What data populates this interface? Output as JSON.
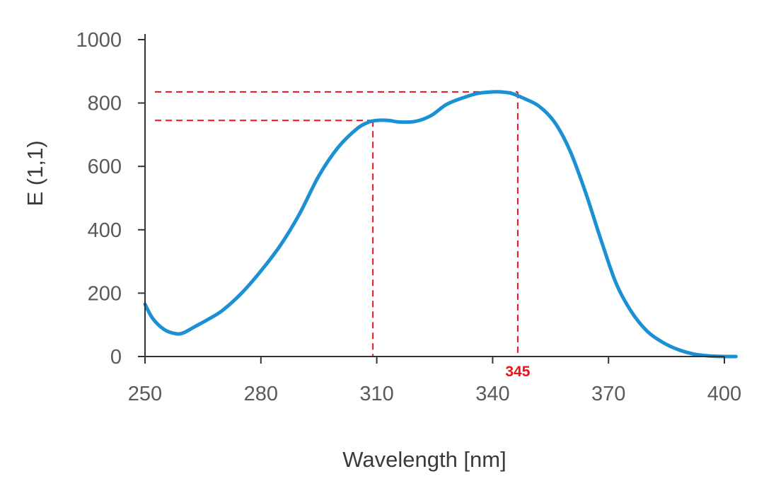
{
  "chart_data": {
    "type": "line",
    "xlabel": "Wavelength [nm]",
    "ylabel": "E (1,1)",
    "xlim": [
      250,
      400
    ],
    "ylim": [
      0,
      1000
    ],
    "x_ticks": [
      250,
      280,
      310,
      340,
      370,
      400
    ],
    "y_ticks": [
      0,
      200,
      400,
      600,
      800,
      1000
    ],
    "x_tick_labels": [
      "250",
      "280",
      "310",
      "340",
      "370",
      "400"
    ],
    "y_tick_labels": [
      "0",
      "200",
      "400",
      "600",
      "800",
      "1000"
    ],
    "grid": false,
    "series": [
      {
        "color": "#1b90d3",
        "x": [
          250,
          252,
          255,
          258,
          260,
          263,
          266,
          270,
          275,
          280,
          285,
          290,
          295,
          300,
          305,
          308,
          310,
          313,
          316,
          320,
          324,
          328,
          332,
          336,
          340,
          342,
          345,
          348,
          352,
          356,
          360,
          364,
          368,
          372,
          376,
          380,
          384,
          388,
          392,
          396,
          400,
          403
        ],
        "y": [
          165,
          120,
          85,
          72,
          75,
          95,
          115,
          145,
          200,
          270,
          350,
          450,
          570,
          660,
          720,
          740,
          745,
          745,
          740,
          742,
          760,
          795,
          815,
          830,
          835,
          835,
          830,
          815,
          790,
          740,
          650,
          520,
          370,
          230,
          140,
          80,
          45,
          22,
          8,
          2,
          0,
          0
        ]
      }
    ],
    "annotations": [
      {
        "type": "crosshair",
        "x": 309,
        "y": 745,
        "color": "#e8141b"
      },
      {
        "type": "crosshair",
        "x": 346.5,
        "y": 835,
        "color": "#e8141b",
        "label": "345"
      }
    ]
  }
}
